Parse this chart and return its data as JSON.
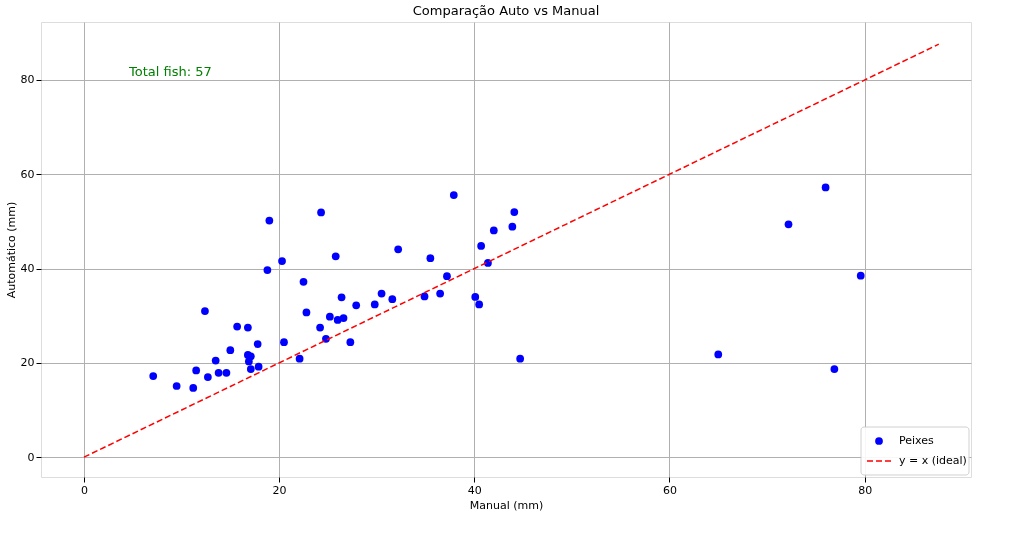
{
  "chart_data": {
    "type": "scatter",
    "title": "Comparação Auto vs Manual",
    "xlabel": "Manual (mm)",
    "ylabel": "Automático (mm)",
    "xlim": [
      -4.4,
      90.9
    ],
    "ylim": [
      -4.2,
      92.3
    ],
    "xticks": [
      0,
      20,
      40,
      60,
      80
    ],
    "yticks": [
      0,
      20,
      40,
      60,
      80
    ],
    "grid": true,
    "legend": "bottom right",
    "annotations": [
      "Total fish: 57"
    ],
    "series": [
      {
        "name": "Peixes",
        "color": "#0000ff",
        "marker": "circle",
        "x": [
          24.3,
          37.9,
          44.1,
          43.9,
          42.0,
          40.7,
          41.4,
          32.2,
          35.5,
          25.8,
          20.3,
          22.5,
          37.2,
          34.9,
          36.5,
          40.1,
          40.5,
          30.5,
          29.8,
          31.6,
          26.4,
          27.9,
          22.8,
          25.2,
          26.0,
          26.6,
          24.2,
          24.8,
          27.3,
          20.5,
          22.1,
          44.7,
          19.0,
          18.8,
          12.4,
          15.7,
          16.8,
          17.8,
          15.0,
          13.5,
          16.8,
          17.1,
          16.9,
          17.1,
          17.9,
          11.5,
          13.8,
          14.6,
          12.7,
          7.1,
          9.5,
          11.2,
          76.0,
          72.2,
          79.6,
          65.0,
          76.9
        ],
        "values": [
          51.9,
          55.6,
          52.0,
          48.9,
          48.1,
          44.8,
          41.2,
          44.1,
          42.2,
          42.6,
          41.6,
          37.2,
          38.4,
          34.1,
          34.7,
          34.0,
          32.4,
          34.7,
          32.4,
          33.5,
          33.9,
          32.2,
          30.7,
          29.8,
          29.1,
          29.5,
          27.5,
          25.1,
          24.4,
          24.4,
          20.9,
          20.9,
          50.2,
          39.7,
          31.0,
          27.7,
          27.5,
          24.0,
          22.7,
          20.5,
          21.7,
          21.4,
          20.3,
          18.7,
          19.2,
          18.4,
          17.9,
          17.9,
          17.0,
          17.2,
          15.1,
          14.7,
          57.2,
          49.4,
          38.5,
          21.8,
          18.7
        ]
      },
      {
        "name": "y = x (ideal)",
        "type": "line",
        "color": "#ff0000",
        "line_style": "dashed",
        "x": [
          0,
          87.6
        ],
        "values": [
          0,
          87.6
        ]
      }
    ]
  }
}
